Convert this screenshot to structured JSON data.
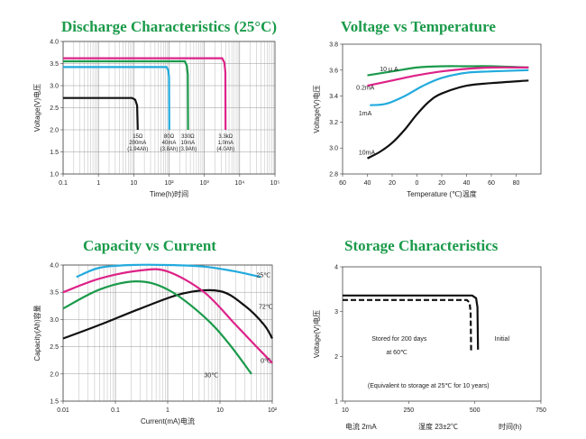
{
  "chart_data": [
    {
      "id": "discharge",
      "type": "line",
      "title": "Discharge Characteristics (25°C)",
      "xlabel": "Time(h)时间",
      "ylabel": "Voltage(V)电压",
      "xscale": "log",
      "xlim": [
        0.1,
        100000
      ],
      "ylim": [
        1.0,
        4.0
      ],
      "xticks": [
        {
          "v": 0.1,
          "t": "0.1"
        },
        {
          "v": 1,
          "t": "1"
        },
        {
          "v": 10,
          "t": "10"
        },
        {
          "v": 100,
          "t": "10²"
        },
        {
          "v": 1000,
          "t": "10³"
        },
        {
          "v": 10000,
          "t": "10⁴"
        },
        {
          "v": 100000,
          "t": "10⁵"
        }
      ],
      "yticks": [
        1.0,
        1.5,
        2.0,
        2.5,
        3.0,
        3.5,
        4.0
      ],
      "grid": true,
      "series": [
        {
          "color": "#111111",
          "points": [
            [
              0.1,
              2.72
            ],
            [
              9,
              2.72
            ],
            [
              11,
              2.68
            ],
            [
              12.5,
              2.55
            ],
            [
              13,
              2.0
            ]
          ]
        },
        {
          "color": "#22aadd",
          "points": [
            [
              0.1,
              3.42
            ],
            [
              85,
              3.42
            ],
            [
              95,
              3.35
            ],
            [
              100,
              3.2
            ],
            [
              102,
              2.0
            ]
          ]
        },
        {
          "color": "#1a9a4a",
          "points": [
            [
              0.1,
              3.55
            ],
            [
              280,
              3.55
            ],
            [
              320,
              3.45
            ],
            [
              340,
              3.25
            ],
            [
              345,
              2.0
            ]
          ]
        },
        {
          "color": "#dd2288",
          "points": [
            [
              0.1,
              3.62
            ],
            [
              3200,
              3.62
            ],
            [
              3700,
              3.52
            ],
            [
              3950,
              3.3
            ],
            [
              4000,
              2.0
            ]
          ]
        }
      ],
      "annotations": [
        {
          "x": 13,
          "y": 1.92,
          "lines": [
            "15Ω",
            "200mA",
            "(1.94Ah)"
          ]
        },
        {
          "x": 100,
          "y": 1.92,
          "lines": [
            "80Ω",
            "40mA",
            "(3.8Ah)"
          ]
        },
        {
          "x": 340,
          "y": 1.92,
          "lines": [
            "330Ω",
            "10mA",
            "(3.9Ah)"
          ]
        },
        {
          "x": 4000,
          "y": 1.92,
          "lines": [
            "3.3kΩ",
            "1.0mA",
            "(4.0Ah)"
          ]
        }
      ]
    },
    {
      "id": "temperature",
      "type": "line",
      "title": "Voltage vs Temperature",
      "xlabel": "Temperature (℃)温度",
      "ylabel": "Voltage(V)电压",
      "xlim": [
        -60,
        100
      ],
      "ylim": [
        2.8,
        3.8
      ],
      "xticks": [
        {
          "v": -60,
          "t": "60"
        },
        {
          "v": -40,
          "t": "40"
        },
        {
          "v": -20,
          "t": "20"
        },
        {
          "v": 0,
          "t": "0"
        },
        {
          "v": 20,
          "t": "20"
        },
        {
          "v": 40,
          "t": "40"
        },
        {
          "v": 60,
          "t": "60"
        },
        {
          "v": 80,
          "t": "80"
        }
      ],
      "yticks": [
        2.8,
        3.0,
        3.2,
        3.4,
        3.6,
        3.8
      ],
      "grid": false,
      "series": [
        {
          "name": "10μA",
          "color": "#1a9a4a",
          "points": [
            [
              -40,
              3.56
            ],
            [
              -20,
              3.59
            ],
            [
              0,
              3.62
            ],
            [
              20,
              3.63
            ],
            [
              40,
              3.63
            ],
            [
              60,
              3.63
            ],
            [
              90,
              3.62
            ]
          ]
        },
        {
          "name": "0.2mA",
          "color": "#dd2288",
          "points": [
            [
              -40,
              3.48
            ],
            [
              -20,
              3.52
            ],
            [
              0,
              3.56
            ],
            [
              20,
              3.59
            ],
            [
              40,
              3.61
            ],
            [
              60,
              3.62
            ],
            [
              90,
              3.62
            ]
          ]
        },
        {
          "name": "1mA",
          "color": "#22aadd",
          "points": [
            [
              -38,
              3.33
            ],
            [
              -25,
              3.34
            ],
            [
              -10,
              3.4
            ],
            [
              5,
              3.48
            ],
            [
              20,
              3.54
            ],
            [
              40,
              3.58
            ],
            [
              60,
              3.59
            ],
            [
              90,
              3.6
            ]
          ]
        },
        {
          "name": "10mA",
          "color": "#111111",
          "points": [
            [
              -40,
              2.92
            ],
            [
              -30,
              2.97
            ],
            [
              -20,
              3.04
            ],
            [
              -10,
              3.14
            ],
            [
              0,
              3.26
            ],
            [
              10,
              3.36
            ],
            [
              20,
              3.42
            ],
            [
              40,
              3.48
            ],
            [
              60,
              3.5
            ],
            [
              90,
              3.52
            ]
          ]
        }
      ],
      "labels": [
        {
          "text": "10 μ A",
          "x": -30,
          "y": 3.59
        },
        {
          "text": "0.2mA",
          "x": -49,
          "y": 3.45
        },
        {
          "text": "1mA",
          "x": -47,
          "y": 3.25
        },
        {
          "text": "10mA",
          "x": -47,
          "y": 2.95
        }
      ]
    },
    {
      "id": "capacity",
      "type": "line",
      "title": "Capacity vs Current",
      "xlabel": "Current(mA)电流",
      "ylabel": "Capacity(Ah)容量",
      "xscale": "log",
      "xlim": [
        0.01,
        100
      ],
      "ylim": [
        1.5,
        4.0
      ],
      "xticks": [
        {
          "v": 0.01,
          "t": "0.01"
        },
        {
          "v": 0.1,
          "t": "0.1"
        },
        {
          "v": 1,
          "t": "1"
        },
        {
          "v": 10,
          "t": "10"
        },
        {
          "v": 100,
          "t": "10²"
        }
      ],
      "yticks": [
        1.5,
        2.0,
        2.5,
        3.0,
        3.5,
        4.0
      ],
      "grid": true,
      "series": [
        {
          "name": "25℃",
          "color": "#22aadd",
          "points": [
            [
              0.018,
              3.78
            ],
            [
              0.05,
              3.95
            ],
            [
              0.2,
              4.0
            ],
            [
              1,
              4.0
            ],
            [
              5,
              3.97
            ],
            [
              20,
              3.88
            ],
            [
              60,
              3.78
            ]
          ]
        },
        {
          "name": "72℃",
          "color": "#111111",
          "points": [
            [
              0.01,
              2.65
            ],
            [
              0.05,
              2.9
            ],
            [
              0.3,
              3.2
            ],
            [
              2,
              3.48
            ],
            [
              10,
              3.52
            ],
            [
              30,
              3.25
            ],
            [
              70,
              2.9
            ],
            [
              100,
              2.65
            ]
          ]
        },
        {
          "name": "0℃",
          "color": "#dd2288",
          "points": [
            [
              0.01,
              3.5
            ],
            [
              0.05,
              3.75
            ],
            [
              0.3,
              3.9
            ],
            [
              1,
              3.88
            ],
            [
              5,
              3.5
            ],
            [
              20,
              2.9
            ],
            [
              50,
              2.5
            ],
            [
              100,
              2.2
            ]
          ]
        },
        {
          "name": "30℃",
          "color": "#1a9a4a",
          "points": [
            [
              0.01,
              3.2
            ],
            [
              0.05,
              3.55
            ],
            [
              0.25,
              3.7
            ],
            [
              1,
              3.55
            ],
            [
              5,
              3.05
            ],
            [
              15,
              2.55
            ],
            [
              40,
              2.0
            ]
          ]
        }
      ],
      "labels": [
        {
          "text": "25℃",
          "x": 50,
          "y": 3.78
        },
        {
          "text": "72℃",
          "x": 55,
          "y": 3.2
        },
        {
          "text": "0℃",
          "x": 60,
          "y": 2.2
        },
        {
          "text": "30℃",
          "x": 5,
          "y": 1.94
        }
      ]
    },
    {
      "id": "storage",
      "type": "line",
      "title": "Storage Characteristics",
      "ylabel": "Voltage(V)电压",
      "xlim": [
        0,
        750
      ],
      "ylim": [
        1,
        4
      ],
      "xticks": [
        {
          "v": 10,
          "t": "10"
        },
        {
          "v": 250,
          "t": "250"
        },
        {
          "v": 500,
          "t": "500"
        },
        {
          "v": 750,
          "t": "750"
        }
      ],
      "yticks": [
        1,
        2,
        3,
        4
      ],
      "grid": false,
      "series": [
        {
          "name": "Initial",
          "color": "#111111",
          "style": "solid",
          "points": [
            [
              0,
              3.36
            ],
            [
              490,
              3.36
            ],
            [
              505,
              3.3
            ],
            [
              510,
              3.1
            ],
            [
              512,
              2.15
            ]
          ]
        },
        {
          "name": "Stored for 200 days at 60℃",
          "color": "#111111",
          "style": "dashed",
          "points": [
            [
              0,
              3.26
            ],
            [
              470,
              3.26
            ],
            [
              480,
              3.2
            ],
            [
              484,
              3.0
            ],
            [
              486,
              2.1
            ]
          ]
        }
      ],
      "labels": [
        {
          "text": "Stored for 200 days",
          "x": 110,
          "y": 2.35
        },
        {
          "text": "at 60℃",
          "x": 165,
          "y": 2.05
        },
        {
          "text": "Initial",
          "x": 575,
          "y": 2.35
        },
        {
          "text": "(Equivalent to storage at 25℃ for 10 years)",
          "x": 95,
          "y": 1.3
        }
      ],
      "footer": [
        "电流 2mA",
        "湿度 23±2℃",
        "时间(h)"
      ]
    }
  ]
}
